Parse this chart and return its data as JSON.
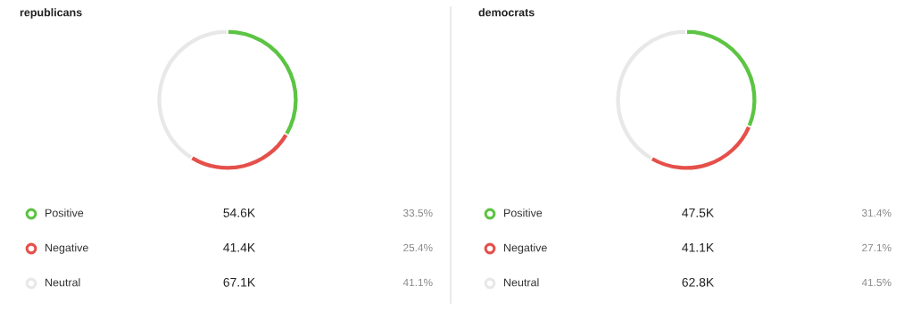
{
  "chart_data": [
    {
      "type": "donut",
      "title": "republicans",
      "categories": [
        "Positive",
        "Negative",
        "Neutral"
      ],
      "values": [
        54.6,
        41.4,
        67.1
      ],
      "value_labels": [
        "54.6K",
        "41.4K",
        "67.1K"
      ],
      "colors": [
        "#5cc443",
        "#e5504a",
        "#e8e8e8"
      ],
      "annotations": [
        "33.5%",
        "25.4%",
        "41.1%"
      ],
      "legend": "bottom"
    },
    {
      "type": "donut",
      "title": "democrats",
      "categories": [
        "Positive",
        "Negative",
        "Neutral"
      ],
      "values": [
        47.5,
        41.1,
        62.8
      ],
      "value_labels": [
        "47.5K",
        "41.1K",
        "62.8K"
      ],
      "colors": [
        "#5cc443",
        "#e5504a",
        "#e8e8e8"
      ],
      "annotations": [
        "31.4%",
        "27.1%",
        "41.5%"
      ],
      "legend": "bottom"
    }
  ]
}
